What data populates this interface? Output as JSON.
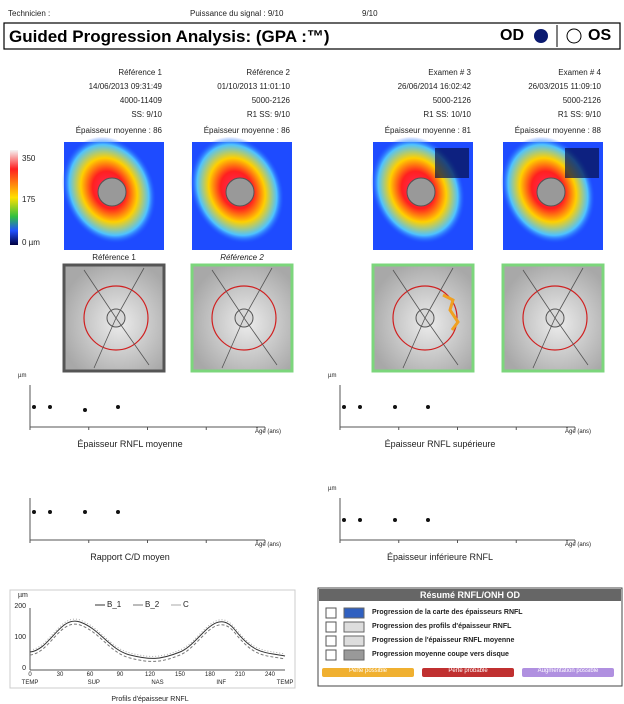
{
  "header": {
    "technician": "Technicien :",
    "signal": "Puissance du signal : 9/10",
    "signal2": "9/10",
    "title": "Guided Progression Analysis: (GPA :™)",
    "od": "OD",
    "os": "OS"
  },
  "exams": [
    {
      "name": "Référence 1",
      "date": "14/06/2013 09:31:49",
      "id": "4000-11409",
      "ss": "SS: 9/10",
      "thickness": "Épaisseur moyenne : 86"
    },
    {
      "name": "Référence 2",
      "date": "01/10/2013 11:01:10",
      "id": "5000-2126",
      "ss": "R1  SS: 9/10",
      "thickness": "Épaisseur moyenne : 86"
    },
    {
      "name": "Examen # 3",
      "date": "26/06/2014 16:02:42",
      "id": "5000-2126",
      "ss": "R1  SS: 10/10",
      "thickness": "Épaisseur moyenne : 81"
    },
    {
      "name": "Examen # 4",
      "date": "26/03/2015 11:09:10",
      "id": "5000-2126",
      "ss": "R1  SS: 9/10",
      "thickness": "Épaisseur moyenne : 88"
    }
  ],
  "color_scale": [
    "350",
    "175",
    "0 µm"
  ],
  "fundus_labels": [
    "Référence 1",
    "Référence 2"
  ],
  "trend_plots": [
    {
      "title": "Épaisseur RNFL moyenne",
      "x_label": "Âge (ans)",
      "unit": "µm"
    },
    {
      "title": "Épaisseur RNFL supérieure",
      "x_label": "Âge (ans)",
      "unit": "µm"
    },
    {
      "title": "Rapport C/D moyen",
      "x_label": "Âge (ans)"
    },
    {
      "title": "Épaisseur inférieure RNFL",
      "x_label": "Âge (ans)",
      "unit": "µm"
    }
  ],
  "profile": {
    "title": "Profils d'épaisseur RNFL",
    "unit": "µm",
    "legend": [
      "B_1",
      "B_2",
      "C"
    ],
    "yticks": [
      "200",
      "100",
      "0"
    ],
    "xticks": [
      "0",
      "30",
      "60",
      "90",
      "120",
      "150",
      "180",
      "210",
      "240"
    ],
    "sectors": [
      "TEMP",
      "SUP",
      "NAS",
      "INF",
      "TEMP"
    ]
  },
  "summary": {
    "title": "Résumé RNFL/ONH OD",
    "items": [
      "Progression de la carte des épaisseurs RNFL",
      "Progression des profils d'épaisseur RNFL",
      "Progression de l'épaisseur RNFL moyenne",
      "Progression moyenne coupe vers disque"
    ],
    "legend": [
      "Perte possible",
      "Perte probable",
      "Augmentation possible"
    ]
  }
}
